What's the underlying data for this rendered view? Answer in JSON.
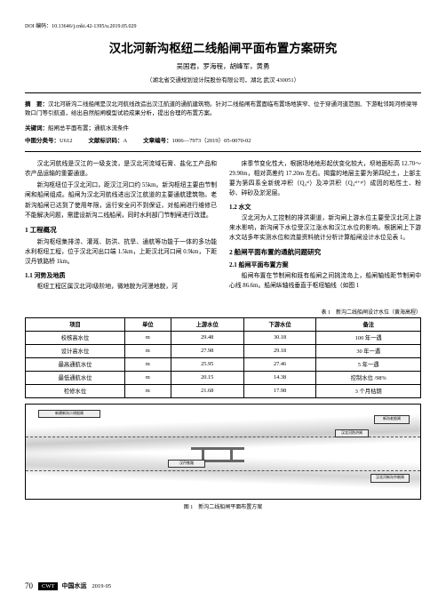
{
  "doi": "DOI 编码：10.13646/j.cnki.42-1395/u.2019.05.029",
  "title": "汉北河新沟枢纽二线船闸平面布置方案研究",
  "authors": "吴国君，罗海程，胡峰军，黄勇",
  "affiliation": "（湖北省交通规划设计院股份有限公司，湖北 武汉 430051）",
  "abstract_label": "摘　要：",
  "abstract_text": "汉北河新沟二线船闸是汉北河航线改造出汉江航道的通航建筑物。针对二线船闸布置面临布置场地狭窄、位于穿通河道范围、下游毗邻跨河桥梁导致口门等引航道，给出自然船闸模型试验成果分析，提出合理的布置方案。",
  "keywords_label": "关键词：",
  "keywords_text": "船闸总平面布置；通航水流条件",
  "class_label": "中图分类号：",
  "class_no": "U612",
  "doctype_label": "文献标识码：",
  "doctype": "A",
  "artno_label": "文章编号：",
  "artno": "1006—7973（2019）05-0070-02",
  "body": {
    "p1": "汉北河航线是汉江的一级支流，是汉北河流域石膏、盐化工产品和农产品运输的重要通道。",
    "p2": "新沟枢纽位于汉北河口，距汉江河口约 55km。新沟枢纽主要由节制闸和船闸组成。船闸为汉北河航线进出汉江航道的主要通航建筑物。老新沟船闸已达到了使用年限，运行安全问不到保证，对船闸进行维修已不能解决问题，需建设新沟二线船闸，同时水利部门节制闸进行改建。",
    "h1_1": "1 工程概况",
    "p3": "新沟枢纽集排涝、灌溉、防洪、抗旱、通航等功能于一体的多功能水利枢纽工程，位于汉北河出口端 1.5km，上距汉北河口闸 0.9km，下距汉丹铁路桥 1km。",
    "h2_1": "1.1 河势及地质",
    "p4": "枢纽工程区属汉北河Ⅰ级阶地，微地貌为河漫地貌，河",
    "p5": "床季节变化性大，根据场地地形起伏变化较大，坝地面标高 12.70～29.90m，相对高差约 17.20m 左右。揭露的地层主要为第四纪土，上部主要为第四系全新统冲积（Q₄ᵃˡ）及冲洪积（Q₄ᵃˡ⁺ᵖˡ）成因的粘性土、粉砂、碎砂及淤泥层。",
    "h2_2": "1.2 水文",
    "p6": "汉北河为人工控制的排洪渠道，新沟闸上游水位主要受汉北河上游来水影响，新沟闸下水位受汉江涨水和汉江水位的影响。根据闸上下游水文站多年实测水位和流量资料统计分析计算船闸设计水位见表 1。",
    "h1_2": "2 船闸平面布置的通航问题研究",
    "h2_3": "2.1 船闸平面布置方案",
    "p7": "船闸布置在节制闸和既有船闸之间挑流岛上，船闸轴线距节制闸中心线 86.6m。船闸纵轴线垂直于枢纽轴线（如图 1"
  },
  "table": {
    "caption": "表 1　新沟二线船闸设计水位（黄海高程）",
    "headers": [
      "项目",
      "单位",
      "上游水位",
      "下游水位",
      "备注"
    ],
    "rows": [
      [
        "校核高水位",
        "m",
        "29.48",
        "30.18",
        "100 年一遇"
      ],
      [
        "设计高水位",
        "m",
        "27.98",
        "29.18",
        "30 年一遇"
      ],
      [
        "最高通航水位",
        "m",
        "25.95",
        "27.46",
        "5 年一遇"
      ],
      [
        "最低通航水位",
        "m",
        "20.15",
        "14.38",
        "控制水位 /98%"
      ],
      [
        "检修水位",
        "m",
        "21.68",
        "17.98",
        "3 个月枯期"
      ]
    ]
  },
  "figure": {
    "caption": "图 1　新沟二线船闸平面布置方案",
    "lb1": "新沟老船闸",
    "lb2": "汉北河防洪闸",
    "lb3": "汉北河新沟节制闸",
    "lb4": "新建新沟二线船闸",
    "lb5": "汉丹铁路"
  },
  "footer": {
    "page": "70",
    "cwt": "CWT",
    "mag": "中国水运",
    "issue": "2019·05"
  }
}
